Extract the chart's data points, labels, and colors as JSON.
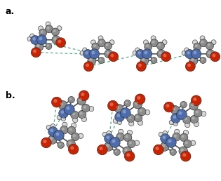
{
  "background_color": "#ffffff",
  "label_a": "a.",
  "label_b": "b.",
  "label_fontsize": 9,
  "fig_width": 3.15,
  "fig_height": 2.58,
  "dpi": 100,
  "colors": {
    "C": "#8c8c8c",
    "N": "#4c6cad",
    "O": "#cc2200",
    "H": "#d4d4d4",
    "bond": "#505050",
    "hbond": "#55aa88",
    "bg": "#ffffff"
  }
}
